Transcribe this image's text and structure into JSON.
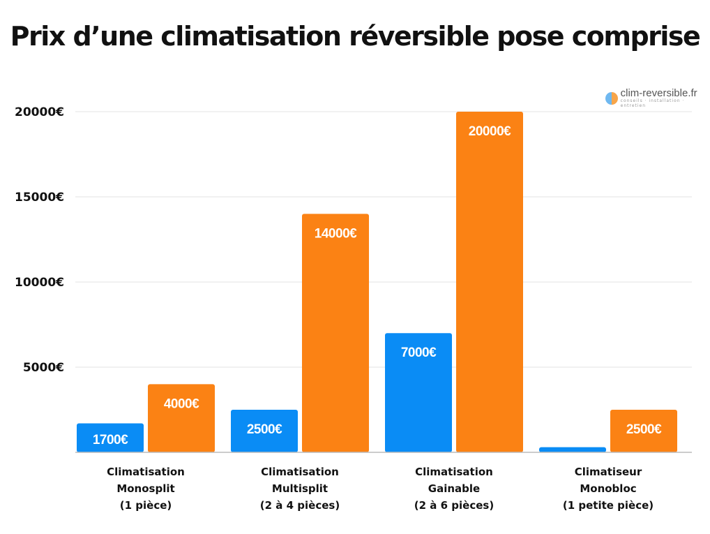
{
  "title": "Prix d’une climatisation réversible pose comprise",
  "logo": {
    "name": "clim-reversible.fr",
    "tagline": "conseils · installation · entretien"
  },
  "colors": {
    "series_low": "#0a8cf5",
    "series_high": "#fb8214",
    "grid": "#e3e3e3"
  },
  "chart_data": {
    "type": "bar",
    "title": "Prix d’une climatisation réversible pose comprise",
    "categories": [
      [
        "Climatisation",
        "Monosplit",
        "(1 pièce)"
      ],
      [
        "Climatisation",
        "Multisplit",
        "(2 à 4 pièces)"
      ],
      [
        "Climatisation",
        "Gainable",
        "(2 à 6 pièces)"
      ],
      [
        "Climatiseur",
        "Monobloc",
        "(1 petite pièce)"
      ]
    ],
    "series": [
      {
        "values": [
          1700,
          2500,
          7000,
          300
        ],
        "labels": [
          "1700€",
          "2500€",
          "7000€",
          ""
        ]
      },
      {
        "values": [
          4000,
          14000,
          20000,
          2500
        ],
        "labels": [
          "4000€",
          "14000€",
          "20000€",
          "2500€"
        ]
      }
    ],
    "ylim": [
      0,
      20000
    ],
    "yticks": [
      5000,
      10000,
      15000,
      20000
    ],
    "ytick_labels": [
      "5000€",
      "10000€",
      "15000€",
      "20000€"
    ],
    "grid": true
  }
}
